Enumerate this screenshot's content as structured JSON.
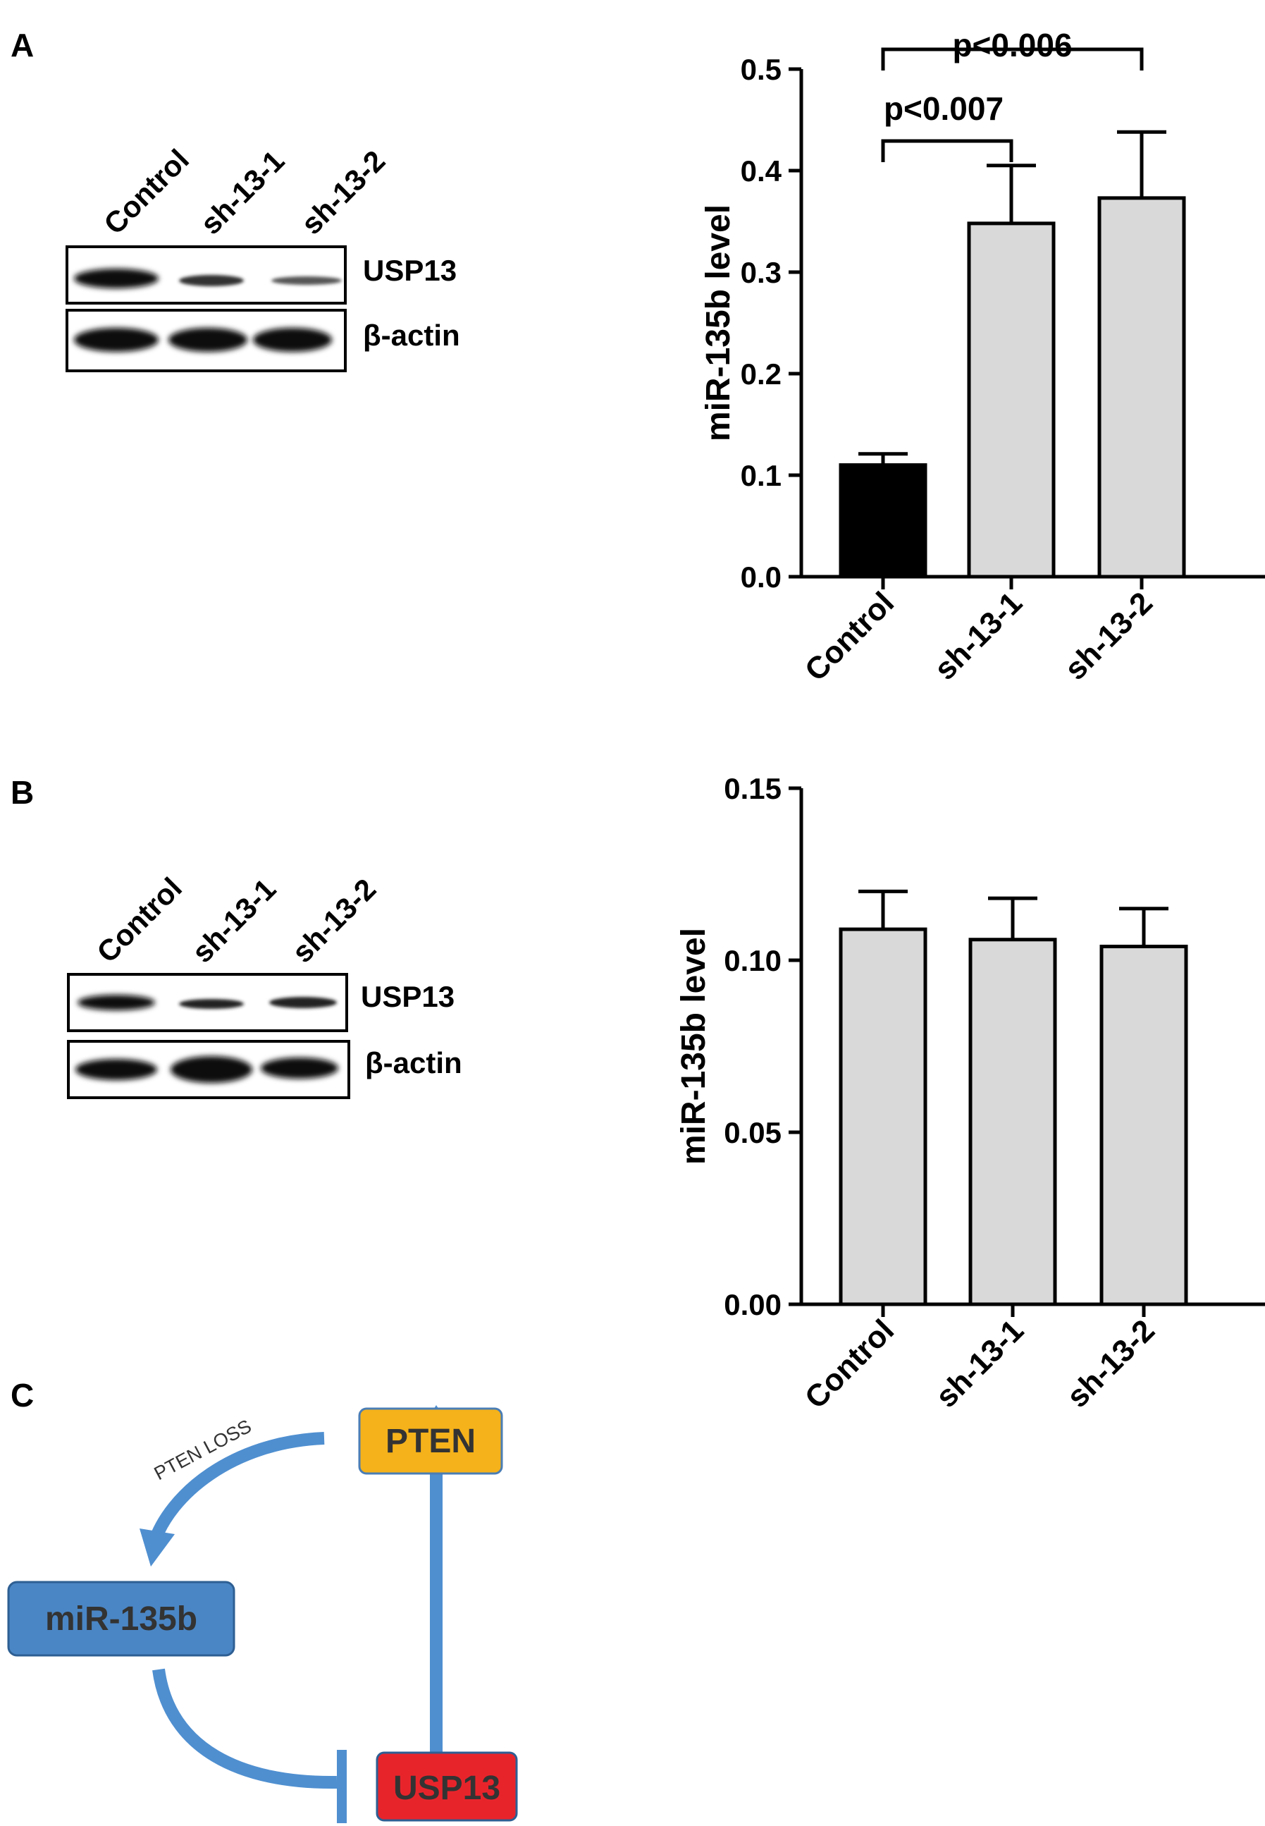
{
  "panel_labels": [
    "A",
    "B",
    "C"
  ],
  "blot_A": {
    "lanes": [
      "Control",
      "sh-13-1",
      "sh-13-2"
    ],
    "rows": [
      "USP13",
      "β-actin"
    ]
  },
  "blot_B": {
    "lanes": [
      "Control",
      "sh-13-1",
      "sh-13-2"
    ],
    "rows": [
      "USP13",
      "β-actin"
    ]
  },
  "chart_data": [
    {
      "type": "bar",
      "panel": "A",
      "categories": [
        "Control",
        "sh-13-1",
        "sh-13-2"
      ],
      "values": [
        0.11,
        0.348,
        0.373
      ],
      "errors": [
        0.011,
        0.057,
        0.065
      ],
      "bar_colors": [
        "#000000",
        "#d9d9d9",
        "#d9d9d9"
      ],
      "ylabel": "miR-135b level",
      "ylim": [
        0,
        0.5
      ],
      "yticks": [
        "0.0",
        "0.1",
        "0.2",
        "0.3",
        "0.4",
        "0.5"
      ],
      "annotations": [
        {
          "text": "p<0.007",
          "from": 0,
          "to": 1
        },
        {
          "text": "p<0.006",
          "from": 0,
          "to": 2
        }
      ]
    },
    {
      "type": "bar",
      "panel": "B",
      "categories": [
        "Control",
        "sh-13-1",
        "sh-13-2"
      ],
      "values": [
        0.109,
        0.106,
        0.104
      ],
      "errors": [
        0.011,
        0.012,
        0.011
      ],
      "bar_colors": [
        "#d9d9d9",
        "#d9d9d9",
        "#d9d9d9"
      ],
      "ylabel": "miR-135b level",
      "ylim": [
        0,
        0.15
      ],
      "yticks": [
        "0.00",
        "0.05",
        "0.10",
        "0.15"
      ]
    }
  ],
  "diagram_C": {
    "nodes": {
      "pten": "PTEN",
      "mir": "miR-135b",
      "usp13": "USP13"
    },
    "edge_label": "PTEN LOSS",
    "colors": {
      "pten": "#f5b21a",
      "mir": "#4a86c5",
      "usp13": "#e8242b",
      "arrow": "#4f8fd0"
    }
  }
}
